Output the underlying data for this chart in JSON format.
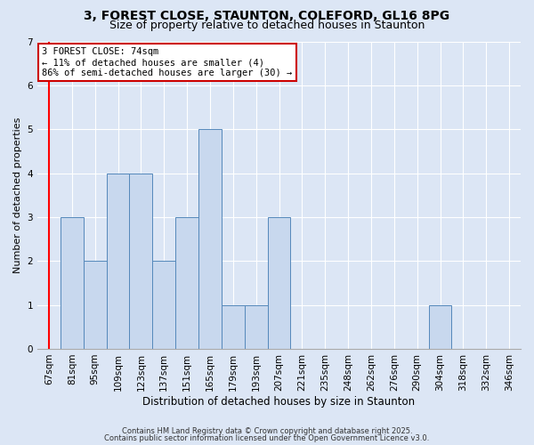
{
  "title1": "3, FOREST CLOSE, STAUNTON, COLEFORD, GL16 8PG",
  "title2": "Size of property relative to detached houses in Staunton",
  "xlabel": "Distribution of detached houses by size in Staunton",
  "ylabel": "Number of detached properties",
  "categories": [
    "67sqm",
    "81sqm",
    "95sqm",
    "109sqm",
    "123sqm",
    "137sqm",
    "151sqm",
    "165sqm",
    "179sqm",
    "193sqm",
    "207sqm",
    "221sqm",
    "235sqm",
    "248sqm",
    "262sqm",
    "276sqm",
    "290sqm",
    "304sqm",
    "318sqm",
    "332sqm",
    "346sqm"
  ],
  "values": [
    0,
    3,
    2,
    4,
    4,
    2,
    3,
    5,
    1,
    1,
    3,
    0,
    0,
    0,
    0,
    0,
    0,
    1,
    0,
    0,
    0
  ],
  "bar_color": "#c8d8ee",
  "bar_edge_color": "#5588bb",
  "red_line_x": 0.0,
  "annotation_text": "3 FOREST CLOSE: 74sqm\n← 11% of detached houses are smaller (4)\n86% of semi-detached houses are larger (30) →",
  "annotation_box_color": "#ffffff",
  "annotation_box_edge": "#cc0000",
  "footer_text1": "Contains HM Land Registry data © Crown copyright and database right 2025.",
  "footer_text2": "Contains public sector information licensed under the Open Government Licence v3.0.",
  "ylim": [
    0,
    7
  ],
  "yticks": [
    0,
    1,
    2,
    3,
    4,
    5,
    6,
    7
  ],
  "background_color": "#dce6f5",
  "plot_bg_color": "#dce6f5",
  "title_fontsize": 10,
  "subtitle_fontsize": 9
}
